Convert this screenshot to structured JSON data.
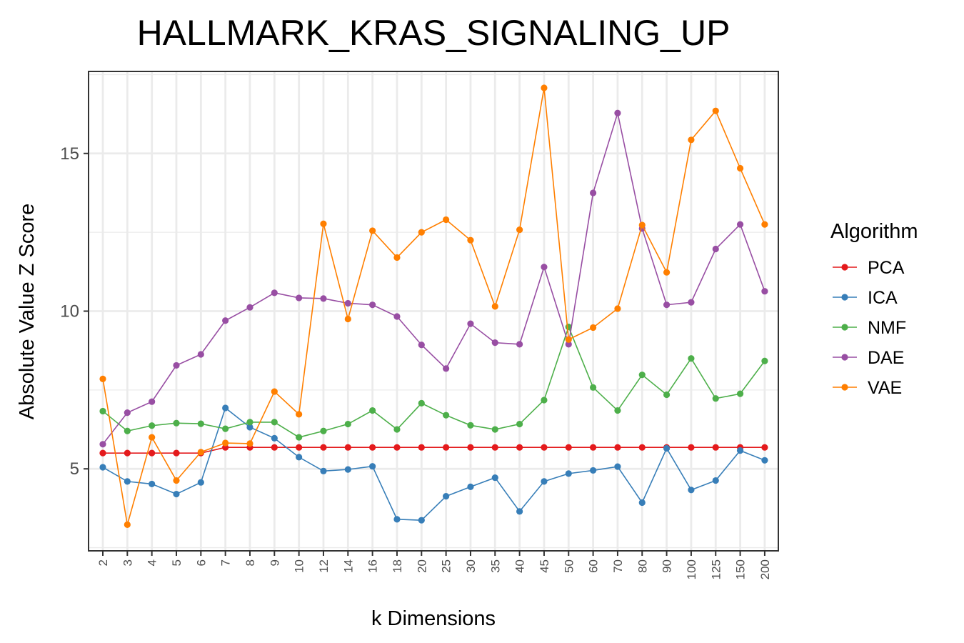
{
  "chart_data": {
    "type": "line",
    "title": "HALLMARK_KRAS_SIGNALING_UP",
    "xlabel": "k Dimensions",
    "ylabel": "Absolute Value Z Score",
    "categories": [
      "2",
      "3",
      "4",
      "5",
      "6",
      "7",
      "8",
      "9",
      "10",
      "12",
      "14",
      "16",
      "18",
      "20",
      "25",
      "30",
      "35",
      "40",
      "45",
      "50",
      "60",
      "70",
      "80",
      "90",
      "100",
      "125",
      "150",
      "200"
    ],
    "yticks": [
      5,
      10,
      15
    ],
    "ylim": [
      2.4,
      17.6
    ],
    "grid": true,
    "legend": {
      "title": "Algorithm",
      "position": "right"
    },
    "series": [
      {
        "name": "PCA",
        "color": "#e41a1c",
        "values": [
          5.5,
          5.5,
          5.5,
          5.5,
          5.5,
          5.68,
          5.68,
          5.68,
          5.68,
          5.68,
          5.68,
          5.68,
          5.68,
          5.68,
          5.68,
          5.68,
          5.68,
          5.68,
          5.68,
          5.68,
          5.68,
          5.68,
          5.68,
          5.68,
          5.68,
          5.68,
          5.68,
          5.68
        ]
      },
      {
        "name": "ICA",
        "color": "#377eb8",
        "values": [
          5.05,
          4.6,
          4.52,
          4.2,
          4.57,
          6.93,
          6.32,
          5.97,
          5.37,
          4.93,
          4.98,
          5.08,
          3.4,
          3.37,
          4.13,
          4.43,
          4.72,
          3.65,
          4.6,
          4.85,
          4.95,
          5.07,
          3.93,
          5.65,
          4.33,
          4.63,
          5.58,
          5.27
        ]
      },
      {
        "name": "NMF",
        "color": "#4daf4a",
        "values": [
          6.83,
          6.2,
          6.37,
          6.45,
          6.43,
          6.27,
          6.48,
          6.48,
          6.0,
          6.2,
          6.42,
          6.85,
          6.25,
          7.08,
          6.7,
          6.38,
          6.25,
          6.42,
          7.18,
          9.5,
          7.58,
          6.85,
          7.98,
          7.35,
          8.5,
          7.23,
          7.38,
          8.42
        ]
      },
      {
        "name": "DAE",
        "color": "#984ea3",
        "values": [
          5.78,
          6.78,
          7.13,
          8.28,
          8.63,
          9.7,
          10.12,
          10.58,
          10.42,
          10.4,
          10.25,
          10.2,
          9.83,
          8.93,
          8.18,
          9.6,
          9.0,
          8.95,
          11.4,
          8.95,
          13.75,
          16.28,
          12.62,
          10.2,
          10.28,
          11.97,
          12.75,
          10.63
        ]
      },
      {
        "name": "VAE",
        "color": "#ff7f00",
        "values": [
          7.85,
          3.23,
          6.0,
          4.63,
          5.53,
          5.82,
          5.8,
          7.45,
          6.73,
          12.77,
          9.75,
          12.55,
          11.7,
          12.5,
          12.9,
          12.25,
          10.15,
          12.58,
          17.08,
          9.1,
          9.48,
          10.08,
          12.73,
          11.23,
          15.43,
          16.35,
          14.53,
          12.75
        ]
      }
    ]
  }
}
